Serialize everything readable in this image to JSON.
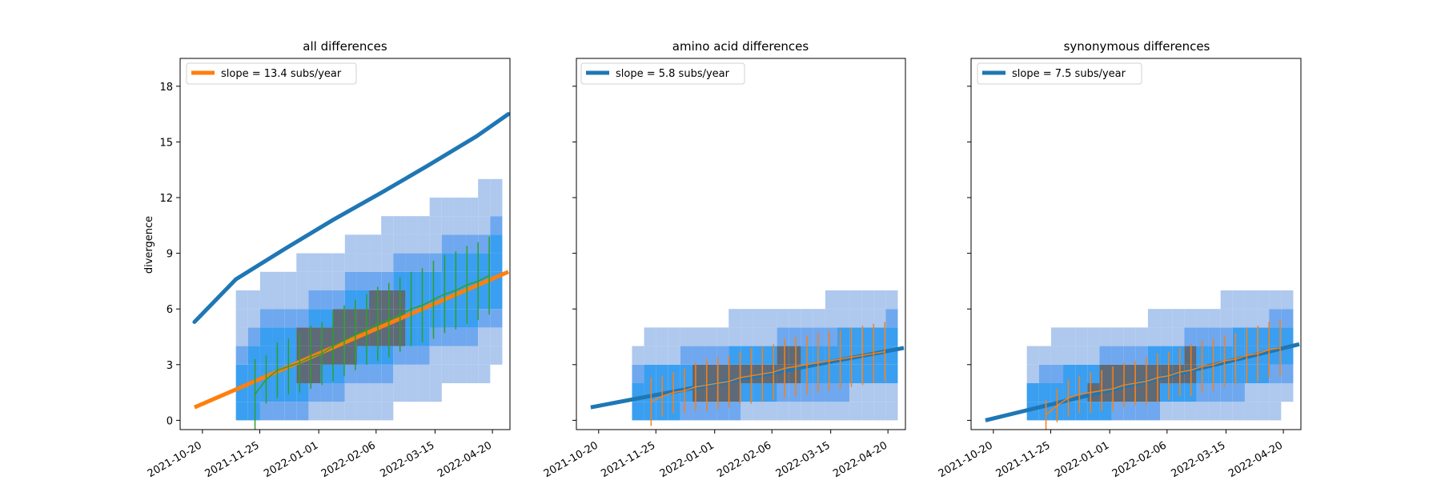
{
  "chart_data": [
    {
      "type": "heatmap",
      "title": "all differences",
      "ylabel": "divergence",
      "xlabel": "",
      "x_ticks": [
        "2021-10-20",
        "2021-11-25",
        "2022-01-01",
        "2022-02-06",
        "2022-03-15",
        "2022-04-20"
      ],
      "y_ticks": [
        "0",
        "3",
        "6",
        "9",
        "12",
        "15",
        "18"
      ],
      "xlim": [
        "2021-10-06",
        "2022-05-01"
      ],
      "ylim": [
        -0.5,
        19.5
      ],
      "legend": {
        "label": "slope = 13.4 subs/year",
        "color": "#ff7f0e",
        "placement": "top-left"
      },
      "regression_line": {
        "color": "#ff7f0e",
        "x": [
          "2021-10-15",
          "2022-04-30"
        ],
        "y": [
          0.7,
          8.0
        ]
      },
      "reference_curve": {
        "color": "#1f77b4",
        "x": [
          "2021-10-15",
          "2021-11-10",
          "2021-12-10",
          "2022-01-10",
          "2022-02-10",
          "2022-03-10",
          "2022-04-10",
          "2022-04-30"
        ],
        "y": [
          5.3,
          7.6,
          9.2,
          10.8,
          12.3,
          13.7,
          15.3,
          16.5
        ]
      },
      "binned_means": {
        "color": "#2ca02c",
        "x": [
          "2021-11-22",
          "2021-11-29",
          "2021-12-06",
          "2021-12-13",
          "2021-12-20",
          "2021-12-27",
          "2022-01-03",
          "2022-01-10",
          "2022-01-17",
          "2022-01-24",
          "2022-01-31",
          "2022-02-07",
          "2022-02-14",
          "2022-02-21",
          "2022-02-28",
          "2022-03-07",
          "2022-03-14",
          "2022-03-21",
          "2022-03-28",
          "2022-04-04",
          "2022-04-11",
          "2022-04-18"
        ],
        "y": [
          1.4,
          2.2,
          2.7,
          2.9,
          3.1,
          3.4,
          3.6,
          4.0,
          4.3,
          4.6,
          4.9,
          5.2,
          5.4,
          5.7,
          6.0,
          6.2,
          6.5,
          6.8,
          7.0,
          7.3,
          7.5,
          7.8
        ],
        "err": [
          1.9,
          1.3,
          1.5,
          1.5,
          1.6,
          1.7,
          1.7,
          1.9,
          1.9,
          1.9,
          1.9,
          2.0,
          2.0,
          2.0,
          2.0,
          2.0,
          2.1,
          2.1,
          2.1,
          2.1,
          2.1,
          2.1
        ]
      }
    },
    {
      "type": "heatmap",
      "title": "amino acid differences",
      "xlabel": "",
      "x_ticks": [
        "2021-10-20",
        "2021-11-25",
        "2022-01-01",
        "2022-02-06",
        "2022-03-15",
        "2022-04-20"
      ],
      "ylim": [
        -0.5,
        19.5
      ],
      "xlim": [
        "2021-10-06",
        "2022-05-01"
      ],
      "legend": {
        "label": "slope = 5.8 subs/year",
        "color": "#1f77b4",
        "placement": "top-left"
      },
      "regression_line": {
        "color": "#1f77b4",
        "x": [
          "2021-10-15",
          "2022-04-30"
        ],
        "y": [
          0.7,
          3.9
        ]
      },
      "binned_means": {
        "color": "#ff7f0e",
        "x": [
          "2021-11-22",
          "2021-11-29",
          "2021-12-06",
          "2021-12-13",
          "2021-12-20",
          "2021-12-27",
          "2022-01-03",
          "2022-01-10",
          "2022-01-17",
          "2022-01-24",
          "2022-01-31",
          "2022-02-07",
          "2022-02-14",
          "2022-02-21",
          "2022-02-28",
          "2022-03-07",
          "2022-03-14",
          "2022-03-21",
          "2022-03-28",
          "2022-04-04",
          "2022-04-11",
          "2022-04-18"
        ],
        "y": [
          1.0,
          1.3,
          1.5,
          1.6,
          1.8,
          1.9,
          2.0,
          2.1,
          2.3,
          2.4,
          2.5,
          2.6,
          2.8,
          2.9,
          3.0,
          3.1,
          3.2,
          3.3,
          3.4,
          3.5,
          3.6,
          3.7
        ],
        "err": [
          1.3,
          1.1,
          1.1,
          1.2,
          1.3,
          1.4,
          1.4,
          1.4,
          1.4,
          1.5,
          1.5,
          1.5,
          1.6,
          1.6,
          1.6,
          1.6,
          1.6,
          1.6,
          1.6,
          1.6,
          1.6,
          1.6
        ]
      }
    },
    {
      "type": "heatmap",
      "title": "synonymous differences",
      "xlabel": "",
      "x_ticks": [
        "2021-10-20",
        "2021-11-25",
        "2022-01-01",
        "2022-02-06",
        "2022-03-15",
        "2022-04-20"
      ],
      "ylim": [
        -0.5,
        19.5
      ],
      "xlim": [
        "2021-10-06",
        "2022-05-01"
      ],
      "legend": {
        "label": "slope = 7.5 subs/year",
        "color": "#1f77b4",
        "placement": "top-left"
      },
      "regression_line": {
        "color": "#1f77b4",
        "x": [
          "2021-10-15",
          "2022-04-30"
        ],
        "y": [
          0.0,
          4.1
        ]
      },
      "binned_means": {
        "color": "#ff7f0e",
        "x": [
          "2021-11-22",
          "2021-11-29",
          "2021-12-06",
          "2021-12-13",
          "2021-12-20",
          "2021-12-27",
          "2022-01-03",
          "2022-01-10",
          "2022-01-17",
          "2022-01-24",
          "2022-01-31",
          "2022-02-07",
          "2022-02-14",
          "2022-02-21",
          "2022-02-28",
          "2022-03-07",
          "2022-03-14",
          "2022-03-21",
          "2022-03-28",
          "2022-04-04",
          "2022-04-11",
          "2022-04-18"
        ],
        "y": [
          0.3,
          0.8,
          1.2,
          1.4,
          1.5,
          1.6,
          1.7,
          1.9,
          2.0,
          2.1,
          2.3,
          2.4,
          2.6,
          2.7,
          2.9,
          3.0,
          3.2,
          3.3,
          3.5,
          3.6,
          3.8,
          3.9
        ],
        "err": [
          0.8,
          0.9,
          1.0,
          1.0,
          1.1,
          1.1,
          1.2,
          1.2,
          1.2,
          1.3,
          1.3,
          1.3,
          1.3,
          1.4,
          1.4,
          1.4,
          1.4,
          1.4,
          1.5,
          1.5,
          1.5,
          1.5
        ]
      }
    }
  ],
  "colors": {
    "hist_light": "#aec8ee",
    "hist_mid": "#6fa8ee",
    "hist_bright": "#3a9ff0",
    "hist_dark": "#5e6a78",
    "orange": "#ff7f0e",
    "blue": "#1f77b4",
    "green": "#2ca02c"
  }
}
